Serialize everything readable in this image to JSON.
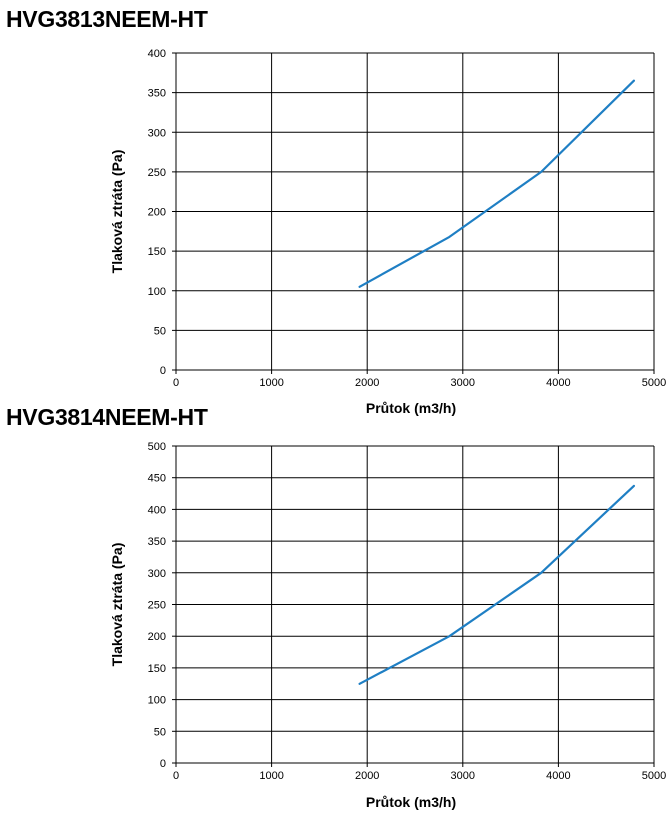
{
  "chart_data": [
    {
      "type": "line",
      "title": "HVG3813NEEM-HT",
      "xlabel": "Průtok (m3/h)",
      "ylabel": "Tlaková ztráta (Pa)",
      "xlim": [
        0,
        5000
      ],
      "ylim": [
        0,
        400
      ],
      "xticks": [
        0,
        1000,
        2000,
        3000,
        4000,
        5000
      ],
      "yticks": [
        0,
        50,
        100,
        150,
        200,
        250,
        300,
        350,
        400
      ],
      "grid": true,
      "series": [
        {
          "x": [
            1920,
            2860,
            3820,
            4790
          ],
          "y": [
            105,
            168,
            250,
            365
          ],
          "color": "#1f7fc4"
        }
      ]
    },
    {
      "type": "line",
      "title": "HVG3814NEEM-HT",
      "xlabel": "Průtok (m3/h)",
      "ylabel": "Tlaková ztráta (Pa)",
      "xlim": [
        0,
        5000
      ],
      "ylim": [
        0,
        500
      ],
      "xticks": [
        0,
        1000,
        2000,
        3000,
        4000,
        5000
      ],
      "yticks": [
        0,
        50,
        100,
        150,
        200,
        250,
        300,
        350,
        400,
        450,
        500
      ],
      "grid": true,
      "series": [
        {
          "x": [
            1920,
            2860,
            3820,
            4790
          ],
          "y": [
            125,
            200,
            300,
            437
          ],
          "color": "#1f7fc4"
        }
      ]
    }
  ]
}
